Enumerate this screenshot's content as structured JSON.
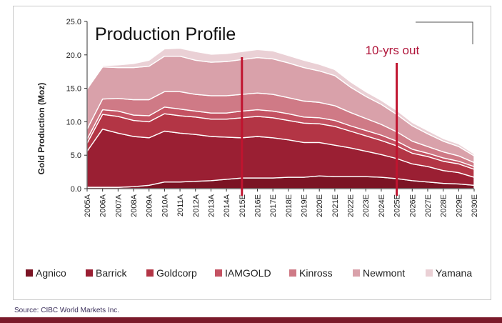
{
  "chart_data": {
    "type": "area",
    "title": "Production Profile",
    "ylabel": "Gold Production (Moz)",
    "xlabel": "",
    "ylim": [
      0,
      25
    ],
    "yticks": [
      "0.0",
      "5.0",
      "10.0",
      "15.0",
      "20.0",
      "25.0"
    ],
    "stacked": true,
    "grid": false,
    "legend_position": "bottom",
    "categories": [
      "2005A",
      "2006A",
      "2007A",
      "2008A",
      "2009A",
      "2010A",
      "2011A",
      "2012A",
      "2013A",
      "2014A",
      "2015E",
      "2016E",
      "2017E",
      "2018E",
      "2019E",
      "2020E",
      "2021E",
      "2022E",
      "2023E",
      "2024E",
      "2025E",
      "2026E",
      "2027E",
      "2028E",
      "2029E",
      "2030E"
    ],
    "series": [
      {
        "name": "Agnico",
        "color": "#7b1424",
        "values": [
          0.2,
          0.2,
          0.2,
          0.3,
          0.5,
          1.0,
          1.0,
          1.1,
          1.2,
          1.4,
          1.6,
          1.6,
          1.6,
          1.7,
          1.7,
          1.9,
          1.8,
          1.8,
          1.8,
          1.7,
          1.5,
          1.2,
          1.0,
          0.8,
          0.7,
          0.5
        ]
      },
      {
        "name": "Barrick",
        "color": "#9a1f33",
        "values": [
          5.4,
          8.7,
          8.1,
          7.5,
          7.1,
          7.6,
          7.3,
          7.0,
          6.6,
          6.3,
          6.0,
          6.2,
          6.0,
          5.6,
          5.2,
          5.0,
          4.7,
          4.3,
          3.8,
          3.4,
          3.0,
          2.5,
          2.3,
          1.9,
          1.7,
          1.2
        ]
      },
      {
        "name": "Goldcorp",
        "color": "#b33545",
        "values": [
          1.2,
          2.2,
          2.5,
          2.4,
          2.4,
          2.6,
          2.6,
          2.6,
          2.6,
          2.7,
          3.0,
          3.0,
          3.0,
          2.9,
          2.9,
          2.8,
          2.8,
          2.5,
          2.3,
          2.1,
          1.9,
          1.6,
          1.5,
          1.4,
          1.3,
          1.2
        ]
      },
      {
        "name": "IAMGOLD",
        "color": "#c45262",
        "values": [
          0.6,
          0.7,
          0.8,
          0.8,
          0.9,
          1.0,
          1.0,
          0.9,
          0.9,
          0.9,
          1.0,
          1.0,
          1.0,
          1.0,
          0.9,
          0.9,
          0.9,
          0.8,
          0.8,
          0.8,
          0.7,
          0.6,
          0.5,
          0.5,
          0.4,
          0.4
        ]
      },
      {
        "name": "Kinross",
        "color": "#cf7a86",
        "values": [
          1.5,
          1.6,
          1.9,
          2.3,
          2.4,
          2.3,
          2.6,
          2.5,
          2.6,
          2.6,
          2.5,
          2.5,
          2.5,
          2.4,
          2.4,
          2.3,
          2.2,
          2.0,
          1.8,
          1.6,
          1.4,
          1.2,
          1.0,
          0.9,
          0.8,
          0.6
        ]
      },
      {
        "name": "Newmont",
        "color": "#d9a1aa",
        "values": [
          6.0,
          4.8,
          4.6,
          4.8,
          5.0,
          5.3,
          5.3,
          5.1,
          5.0,
          5.1,
          5.2,
          5.3,
          5.3,
          5.2,
          5.0,
          4.7,
          4.5,
          3.8,
          3.3,
          3.0,
          2.6,
          2.3,
          1.9,
          1.6,
          1.4,
          1.0
        ]
      },
      {
        "name": "Yamana",
        "color": "#ead0d5",
        "values": [
          0.1,
          0.2,
          0.4,
          0.6,
          0.9,
          1.1,
          1.2,
          1.3,
          1.2,
          1.2,
          1.2,
          1.2,
          1.2,
          1.1,
          1.1,
          1.0,
          0.9,
          0.8,
          0.7,
          0.6,
          0.6,
          0.5,
          0.5,
          0.4,
          0.4,
          0.3
        ]
      }
    ],
    "markers": [
      {
        "category": "2015E",
        "label": ""
      },
      {
        "category": "2025E",
        "label": "10-yrs out"
      }
    ]
  },
  "source": "Source:  CIBC World Markets Inc."
}
